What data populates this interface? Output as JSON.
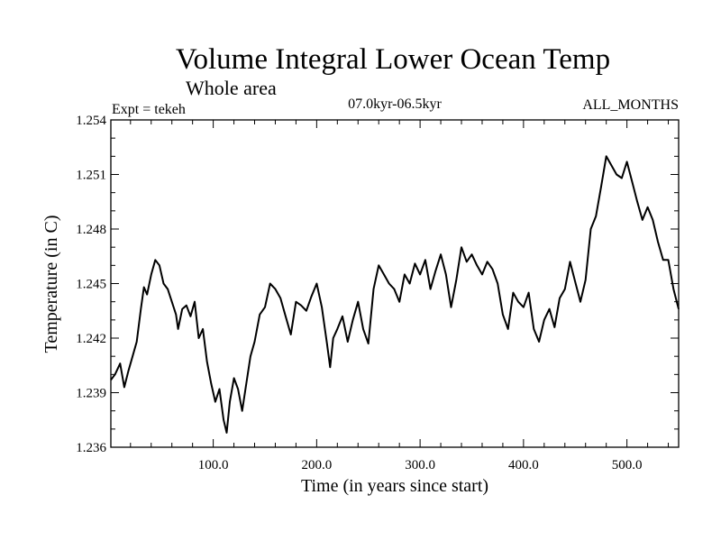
{
  "chart_data": {
    "type": "line",
    "title": "Volume Integral Lower Ocean Temp",
    "subtitle": "Whole area",
    "left_label": "Expt = tekeh",
    "center_label": "07.0kyr-06.5kyr",
    "right_label": "ALL_MONTHS",
    "xlabel": "Time (in years since start)",
    "ylabel": "Temperature (in C)",
    "xlim": [
      1,
      550
    ],
    "ylim": [
      1.236,
      1.254
    ],
    "x_ticks": [
      100,
      200,
      300,
      400,
      500
    ],
    "x_tick_labels": [
      "100.0",
      "200.0",
      "300.0",
      "400.0",
      "500.0"
    ],
    "y_ticks": [
      1.236,
      1.239,
      1.242,
      1.245,
      1.248,
      1.251,
      1.254
    ],
    "y_tick_labels": [
      "1.236",
      "1.239",
      "1.242",
      "1.245",
      "1.248",
      "1.251",
      "1.254"
    ],
    "series": [
      {
        "name": "Volume Integral Lower Ocean Temp",
        "x": [
          1,
          5,
          10,
          14,
          18,
          22,
          26,
          30,
          33,
          36,
          40,
          44,
          48,
          52,
          56,
          60,
          64,
          66,
          70,
          74,
          78,
          82,
          86,
          90,
          94,
          98,
          102,
          106,
          110,
          113,
          116,
          120,
          124,
          128,
          132,
          136,
          140,
          145,
          150,
          155,
          160,
          165,
          170,
          175,
          180,
          185,
          190,
          195,
          200,
          205,
          210,
          213,
          216,
          220,
          225,
          230,
          235,
          240,
          245,
          250,
          255,
          260,
          265,
          270,
          275,
          280,
          285,
          290,
          295,
          300,
          305,
          310,
          315,
          320,
          325,
          330,
          335,
          340,
          345,
          350,
          355,
          360,
          365,
          370,
          375,
          380,
          385,
          390,
          395,
          400,
          405,
          410,
          415,
          420,
          425,
          430,
          435,
          440,
          445,
          450,
          455,
          460,
          465,
          470,
          475,
          480,
          485,
          490,
          495,
          500,
          505,
          510,
          515,
          520,
          525,
          530,
          535,
          540,
          545,
          550
        ],
        "values": [
          1.2397,
          1.24,
          1.2406,
          1.2393,
          1.2402,
          1.241,
          1.2418,
          1.2436,
          1.2448,
          1.2444,
          1.2455,
          1.2463,
          1.246,
          1.245,
          1.2447,
          1.244,
          1.2433,
          1.2425,
          1.2436,
          1.2438,
          1.2432,
          1.244,
          1.242,
          1.2425,
          1.2407,
          1.2395,
          1.2385,
          1.2392,
          1.2375,
          1.2368,
          1.2385,
          1.2398,
          1.2392,
          1.238,
          1.2395,
          1.241,
          1.2418,
          1.2433,
          1.2437,
          1.245,
          1.2447,
          1.2442,
          1.2432,
          1.2422,
          1.244,
          1.2438,
          1.2435,
          1.2443,
          1.245,
          1.2437,
          1.2417,
          1.2404,
          1.242,
          1.2425,
          1.2432,
          1.2418,
          1.243,
          1.244,
          1.2425,
          1.2417,
          1.2447,
          1.246,
          1.2455,
          1.245,
          1.2447,
          1.244,
          1.2455,
          1.245,
          1.2461,
          1.2455,
          1.2463,
          1.2447,
          1.2457,
          1.2466,
          1.2455,
          1.2437,
          1.2452,
          1.247,
          1.2462,
          1.2466,
          1.246,
          1.2455,
          1.2462,
          1.2458,
          1.245,
          1.2433,
          1.2425,
          1.2445,
          1.244,
          1.2437,
          1.2445,
          1.2425,
          1.2418,
          1.243,
          1.2436,
          1.2426,
          1.2442,
          1.2447,
          1.2462,
          1.2451,
          1.244,
          1.2452,
          1.248,
          1.2487,
          1.2503,
          1.252,
          1.2515,
          1.251,
          1.2508,
          1.2517,
          1.2506,
          1.2495,
          1.2485,
          1.2492,
          1.2485,
          1.2473,
          1.2463,
          1.2463,
          1.2447,
          1.2436
        ]
      }
    ]
  }
}
